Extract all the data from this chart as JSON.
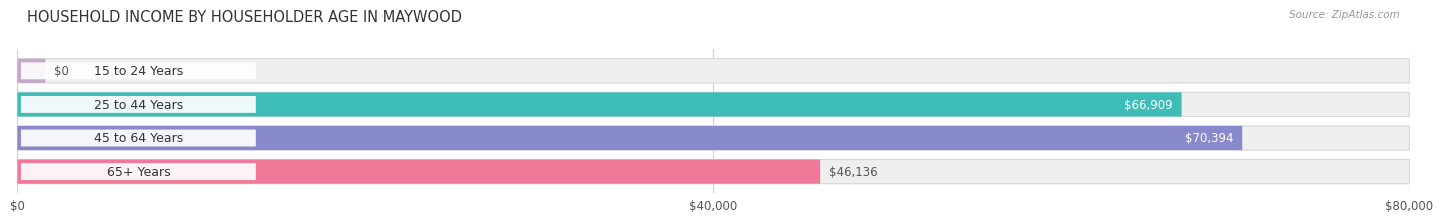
{
  "title": "HOUSEHOLD INCOME BY HOUSEHOLDER AGE IN MAYWOOD",
  "source": "Source: ZipAtlas.com",
  "categories": [
    "15 to 24 Years",
    "25 to 44 Years",
    "45 to 64 Years",
    "65+ Years"
  ],
  "values": [
    0,
    66909,
    70394,
    46136
  ],
  "labels": [
    "$0",
    "$66,909",
    "$70,394",
    "$46,136"
  ],
  "label_inside": [
    false,
    true,
    true,
    false
  ],
  "bar_colors": [
    "#c4a8c8",
    "#3dbcb8",
    "#8888cc",
    "#f07898"
  ],
  "bar_bg_color": "#efefef",
  "bar_border_color": "#d8d8d8",
  "xlim": [
    0,
    80000
  ],
  "xticks": [
    0,
    40000,
    80000
  ],
  "xtick_labels": [
    "$0",
    "$40,000",
    "$80,000"
  ],
  "title_fontsize": 10.5,
  "source_fontsize": 7.5,
  "cat_fontsize": 9,
  "val_fontsize": 8.5,
  "tick_fontsize": 8.5,
  "bar_height": 0.72,
  "background_color": "#ffffff",
  "grid_color": "#d0d0d0",
  "cat_label_color": "#333333",
  "val_label_inside_color": "#ffffff",
  "val_label_outside_color": "#555555"
}
